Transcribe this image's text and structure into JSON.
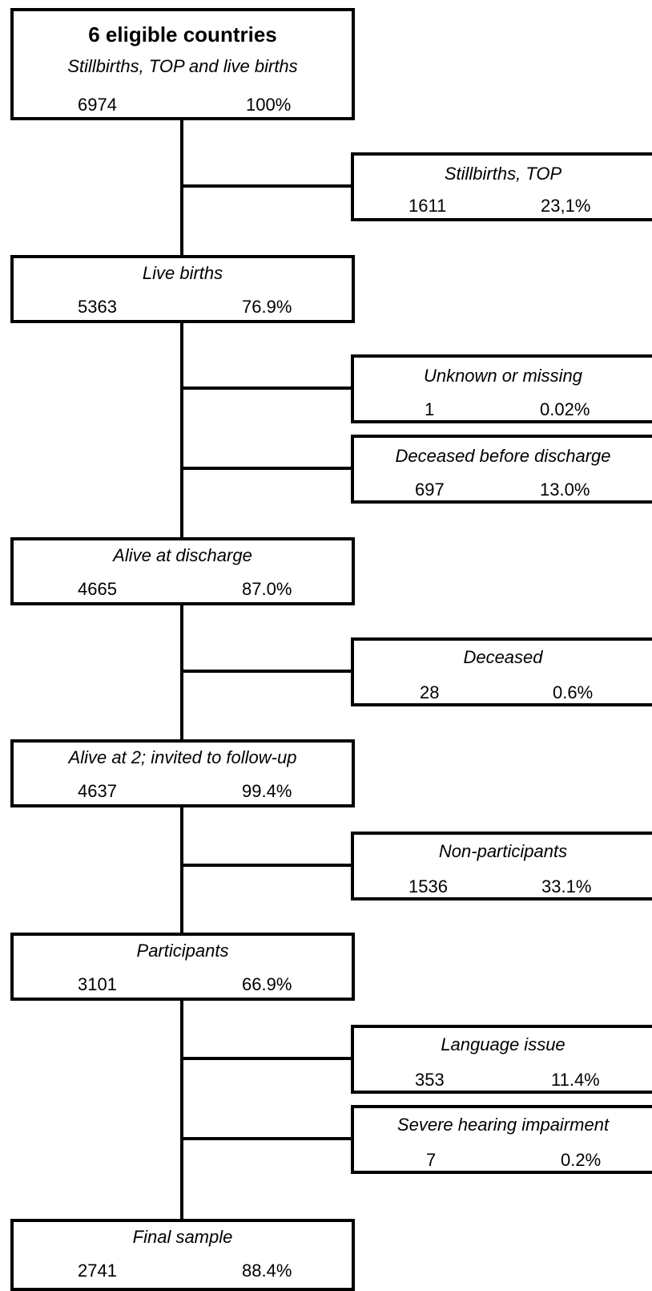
{
  "flow": {
    "main": [
      {
        "title": "6 eligible countries",
        "subtitle": "Stillbirths, TOP and live births",
        "count": "6974",
        "percent": "100%"
      },
      {
        "title": "Live births",
        "count": "5363",
        "percent": "76.9%"
      },
      {
        "title": "Alive at discharge",
        "count": "4665",
        "percent": "87.0%"
      },
      {
        "title": "Alive at 2; invited to follow-up",
        "count": "4637",
        "percent": "99.4%"
      },
      {
        "title": "Participants",
        "count": "3101",
        "percent": "66.9%"
      },
      {
        "title": "Final sample",
        "count": "2741",
        "percent": "88.4%"
      }
    ],
    "exclusions": [
      {
        "title": "Stillbirths,  TOP",
        "count": "1611",
        "percent": "23,1%"
      },
      {
        "title": "Unknown or missing",
        "count": "1",
        "percent": "0.02%"
      },
      {
        "title": "Deceased before discharge",
        "count": "697",
        "percent": "13.0%"
      },
      {
        "title": "Deceased",
        "count": "28",
        "percent": "0.6%"
      },
      {
        "title": "Non-participants",
        "count": "1536",
        "percent": "33.1%"
      },
      {
        "title": "Language issue",
        "count": "353",
        "percent": "11.4%"
      },
      {
        "title": "Severe hearing impairment",
        "count": "7",
        "percent": "0.2%"
      }
    ]
  }
}
